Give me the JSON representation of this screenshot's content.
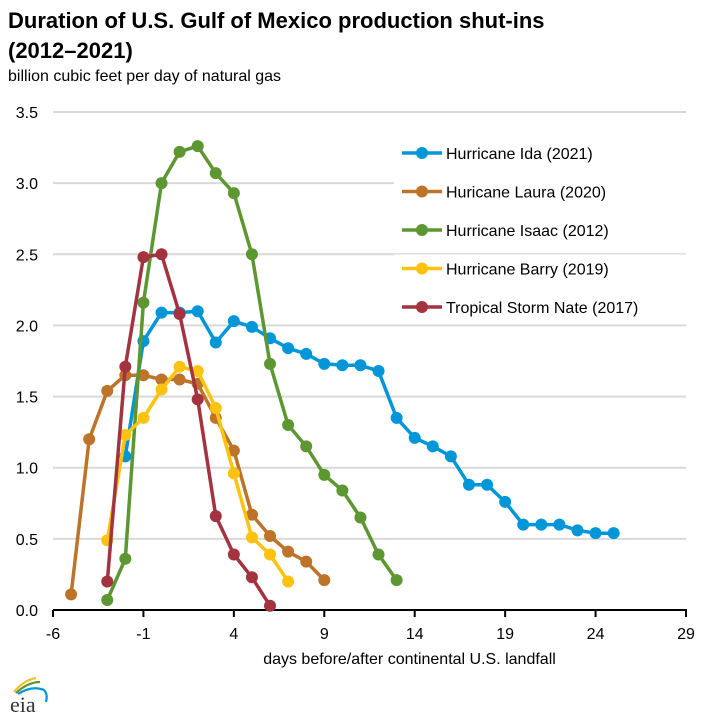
{
  "chart_data": {
    "type": "line",
    "title": "Duration of U.S. Gulf of Mexico production shut-ins (2012–2021)",
    "title_lines": [
      "Duration of U.S. Gulf of Mexico production shut-ins",
      "(2012–2021)"
    ],
    "subtitle": "billion cubic feet per day of natural gas",
    "xlabel": "days before/after continental U.S. landfall",
    "ylabel": "billion cubic feet per day of natural gas",
    "xlim": [
      -6,
      29
    ],
    "ylim": [
      0,
      3.5
    ],
    "xticks": [
      -6,
      -1,
      4,
      9,
      14,
      19,
      24,
      29
    ],
    "xtick_labels": [
      "-6",
      "-1",
      "4",
      "9",
      "14",
      "19",
      "24",
      "29"
    ],
    "yticks": [
      0,
      0.5,
      1.0,
      1.5,
      2.0,
      2.5,
      3.0,
      3.5
    ],
    "ytick_labels": [
      "0.0",
      "0.5",
      "1.0",
      "1.5",
      "2.0",
      "2.5",
      "3.0",
      "3.5"
    ],
    "grid": "horizontal",
    "legend_position": "top-right",
    "series": [
      {
        "name": "Hurricane Ida (2021)",
        "color": "#0096d7",
        "x": [
          -2,
          -1,
          0,
          1,
          2,
          3,
          4,
          5,
          6,
          7,
          8,
          9,
          10,
          11,
          12,
          13,
          14,
          15,
          16,
          17,
          18,
          19,
          20,
          21,
          22,
          23,
          24,
          25
        ],
        "y": [
          1.08,
          1.89,
          2.09,
          2.09,
          2.1,
          1.88,
          2.03,
          1.99,
          1.91,
          1.84,
          1.8,
          1.73,
          1.72,
          1.72,
          1.68,
          1.35,
          1.21,
          1.15,
          1.08,
          0.88,
          0.88,
          0.76,
          0.6,
          0.6,
          0.6,
          0.56,
          0.54,
          0.54
        ]
      },
      {
        "name": "Huricane Laura (2020)",
        "color": "#bd732a",
        "x": [
          -5,
          -4,
          -3,
          -2,
          -1,
          0,
          1,
          2,
          3,
          4,
          5,
          6,
          7,
          8,
          9
        ],
        "y": [
          0.11,
          1.2,
          1.54,
          1.65,
          1.65,
          1.62,
          1.62,
          1.59,
          1.35,
          1.12,
          0.67,
          0.52,
          0.41,
          0.34,
          0.21
        ]
      },
      {
        "name": "Hurricane Isaac (2012)",
        "color": "#5d9732",
        "x": [
          -3,
          -2,
          -1,
          0,
          1,
          2,
          3,
          4,
          5,
          6,
          7,
          8,
          9,
          10,
          11,
          12,
          13
        ],
        "y": [
          0.07,
          0.36,
          2.16,
          3.0,
          3.22,
          3.26,
          3.07,
          2.93,
          2.5,
          1.73,
          1.3,
          1.15,
          0.95,
          0.84,
          0.65,
          0.39,
          0.21
        ]
      },
      {
        "name": "Hurricane Barry (2019)",
        "color": "#ffc20e",
        "x": [
          -3,
          -2,
          -1,
          0,
          1,
          2,
          3,
          4,
          5,
          6,
          7
        ],
        "y": [
          0.49,
          1.23,
          1.35,
          1.55,
          1.71,
          1.68,
          1.42,
          0.96,
          0.51,
          0.39,
          0.2
        ]
      },
      {
        "name": "Tropical Storm Nate (2017)",
        "color": "#a33340",
        "x": [
          -3,
          -2,
          -1,
          0,
          1,
          2,
          3,
          4,
          5,
          6
        ],
        "y": [
          0.2,
          1.71,
          2.48,
          2.5,
          2.08,
          1.48,
          0.66,
          0.39,
          0.23,
          0.03
        ]
      }
    ]
  },
  "branding": {
    "logo_text": "eia",
    "logo_icon": "eia-logo-icon"
  }
}
